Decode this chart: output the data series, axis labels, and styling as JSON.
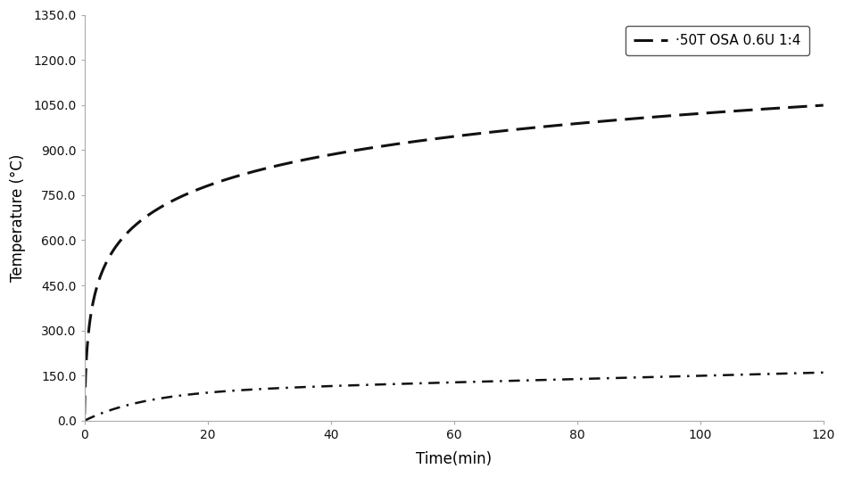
{
  "title": "",
  "xlabel": "Time(min)",
  "ylabel": "Temperature (°C)",
  "legend_label": "·50T OSA 0.6U 1:4",
  "xlim": [
    0,
    120
  ],
  "ylim": [
    0,
    1350
  ],
  "yticks": [
    0.0,
    150.0,
    300.0,
    450.0,
    600.0,
    750.0,
    900.0,
    1050.0,
    1200.0,
    1350.0
  ],
  "xticks": [
    0,
    20,
    40,
    60,
    80,
    100,
    120
  ],
  "background_color": "#ffffff",
  "line_color": "#111111",
  "figsize": [
    9.47,
    5.35
  ],
  "dpi": 100
}
